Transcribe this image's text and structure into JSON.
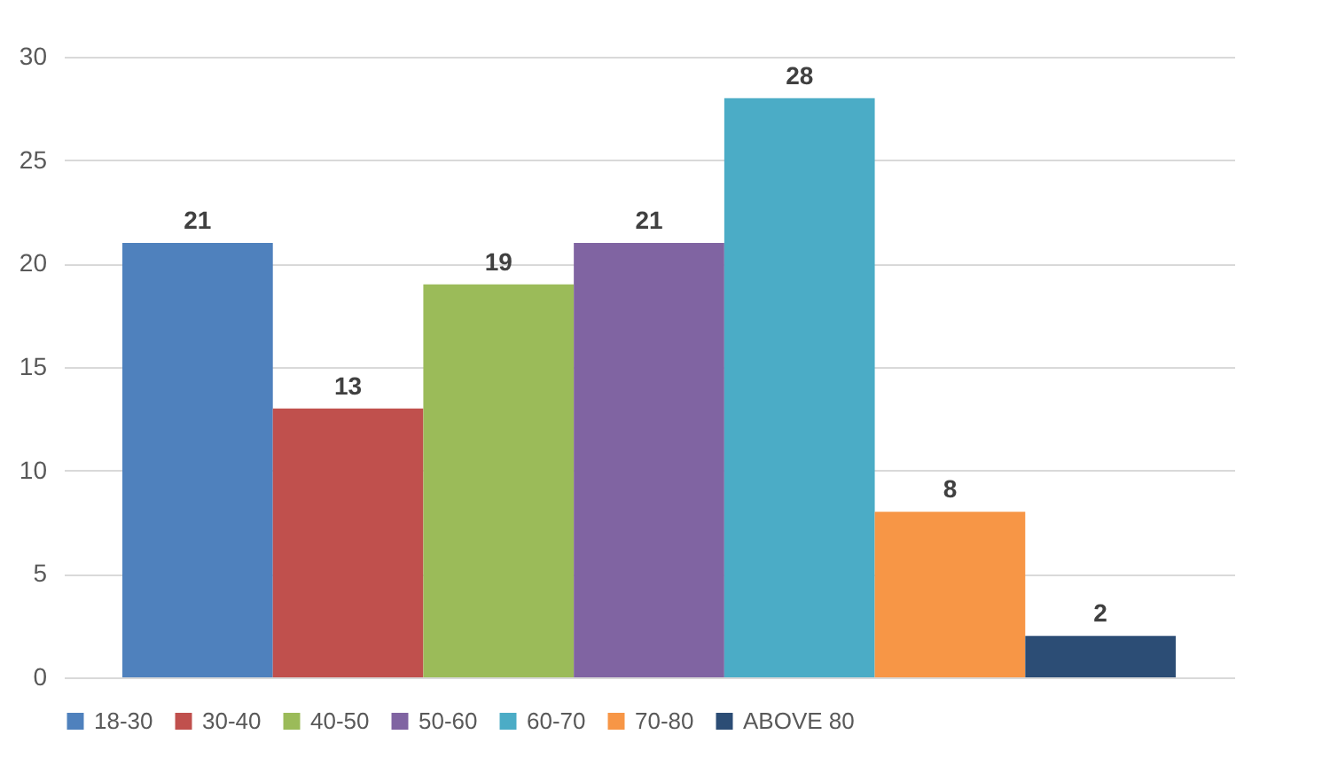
{
  "chart_data": {
    "type": "bar",
    "categories": [
      null
    ],
    "series": [
      {
        "name": "18-30",
        "color": "#4f81bd",
        "values": [
          21
        ]
      },
      {
        "name": "30-40",
        "color": "#c0504d",
        "values": [
          13
        ]
      },
      {
        "name": "40-50",
        "color": "#9bbb59",
        "values": [
          19
        ]
      },
      {
        "name": "50-60",
        "color": "#8064a2",
        "values": [
          21
        ]
      },
      {
        "name": "60-70",
        "color": "#4bacc6",
        "values": [
          28
        ]
      },
      {
        "name": "70-80",
        "color": "#f79646",
        "values": [
          8
        ]
      },
      {
        "name": "ABOVE 80",
        "color": "#2c4d75",
        "values": [
          2
        ]
      }
    ],
    "ylim": [
      0,
      30
    ],
    "yticks": [
      0,
      5,
      10,
      15,
      20,
      25,
      30
    ],
    "grid": "y",
    "legend": "bottom",
    "tick_labels": "y",
    "data_labels": true
  }
}
